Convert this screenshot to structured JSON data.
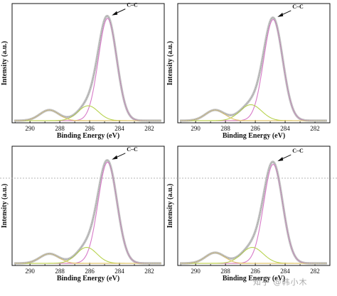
{
  "figure": {
    "watermark": "知乎 @韩小木"
  },
  "colors": {
    "envelope": "#9e9e9e",
    "envelope_light": "#c6c6c6",
    "cc_component": "#d77ac8",
    "co_component": "#b7d24e",
    "oco_component": "#e0c56a",
    "baseline": "#e8c87a",
    "reference_line": "#b0b0b0",
    "axis": "#111111"
  },
  "chart_data": [
    {
      "type": "line",
      "panel": "top-left",
      "xlabel": "Binding Energy (eV)",
      "ylabel": "Intensity (a.u.)",
      "xlim": [
        291.2,
        281.0
      ],
      "x_reversed": true,
      "xticks": [
        "290",
        "288",
        "286",
        "284",
        "282"
      ],
      "ylim": [
        0,
        1.12
      ],
      "y_ticks_shown": false,
      "annotation": "C–C",
      "annotation_x": 284.8,
      "reference_line_y": null,
      "background": 0.02,
      "components": [
        {
          "center": 284.8,
          "height": 0.96,
          "fwhm": 1.45
        },
        {
          "center": 286.1,
          "height": 0.14,
          "fwhm": 1.6
        },
        {
          "center": 288.7,
          "height": 0.1,
          "fwhm": 1.5
        }
      ]
    },
    {
      "type": "line",
      "panel": "top-right",
      "xlabel": "Binding Energy (eV)",
      "ylabel": "Intensity (a.u.)",
      "xlim": [
        291.2,
        281.0
      ],
      "x_reversed": true,
      "xticks": [
        "290",
        "288",
        "286",
        "284",
        "282"
      ],
      "ylim": [
        0,
        1.12
      ],
      "y_ticks_shown": false,
      "annotation": "C–C",
      "annotation_x": 284.8,
      "reference_line_y": null,
      "background": 0.02,
      "components": [
        {
          "center": 284.8,
          "height": 0.95,
          "fwhm": 1.5
        },
        {
          "center": 286.3,
          "height": 0.15,
          "fwhm": 1.7
        },
        {
          "center": 288.7,
          "height": 0.1,
          "fwhm": 1.5
        }
      ]
    },
    {
      "type": "line",
      "panel": "bottom-left",
      "xlabel": "Binding Energy (eV)",
      "ylabel": "Intensity (a.u.)",
      "xlim": [
        291.2,
        281.0
      ],
      "x_reversed": true,
      "xticks": [
        "290",
        "288",
        "286",
        "284",
        "282"
      ],
      "ylim": [
        0,
        1.12
      ],
      "y_ticks_shown": false,
      "annotation": "C–C",
      "annotation_x": 284.8,
      "reference_line_y": 0.82,
      "background": 0.02,
      "components": [
        {
          "center": 284.8,
          "height": 0.95,
          "fwhm": 1.5
        },
        {
          "center": 286.2,
          "height": 0.15,
          "fwhm": 1.6
        },
        {
          "center": 288.7,
          "height": 0.09,
          "fwhm": 1.5
        }
      ]
    },
    {
      "type": "line",
      "panel": "bottom-right",
      "xlabel": "Binding Energy (eV)",
      "ylabel": "Intensity (a.u.)",
      "xlim": [
        291.2,
        281.0
      ],
      "x_reversed": true,
      "xticks": [
        "290",
        "288",
        "286",
        "284",
        "282"
      ],
      "ylim": [
        0,
        1.12
      ],
      "y_ticks_shown": false,
      "annotation": "C–C",
      "annotation_x": 284.8,
      "reference_line_y": 0.82,
      "background": 0.02,
      "components": [
        {
          "center": 284.8,
          "height": 0.93,
          "fwhm": 1.5
        },
        {
          "center": 286.2,
          "height": 0.15,
          "fwhm": 1.7
        },
        {
          "center": 288.7,
          "height": 0.1,
          "fwhm": 1.5
        }
      ]
    }
  ]
}
